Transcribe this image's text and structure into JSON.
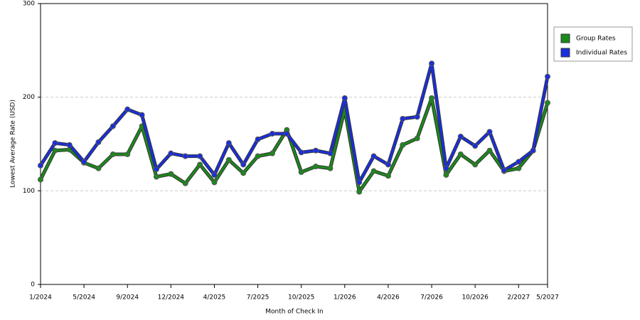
{
  "chart_data": {
    "type": "line",
    "x_label": "Month of Check In",
    "y_label": "Lowest Average Rate (USD)",
    "categories": [
      "1/2024",
      null,
      null,
      "5/2024",
      null,
      null,
      "9/2024",
      null,
      null,
      "12/2024",
      null,
      null,
      "4/2025",
      null,
      null,
      "7/2025",
      null,
      null,
      "10/2025",
      null,
      null,
      "1/2026",
      null,
      null,
      "4/2026",
      null,
      null,
      "7/2026",
      null,
      null,
      "10/2026",
      null,
      null,
      "2/2027",
      null,
      "5/2027"
    ],
    "series": [
      {
        "name": "Group Rates",
        "color": "#1a8a1a",
        "values": [
          112,
          143,
          144,
          130,
          124,
          139,
          139,
          169,
          115,
          118,
          108,
          128,
          109,
          133,
          119,
          137,
          140,
          165,
          120,
          126,
          124,
          187,
          99,
          121,
          116,
          149,
          156,
          199,
          117,
          139,
          128,
          143,
          121,
          124,
          143,
          194
        ]
      },
      {
        "name": "Individual Rates",
        "color": "#1a2ee0",
        "values": [
          127,
          151,
          149,
          131,
          152,
          169,
          187,
          181,
          123,
          140,
          137,
          137,
          117,
          151,
          128,
          155,
          161,
          161,
          141,
          143,
          140,
          199,
          109,
          137,
          128,
          177,
          179,
          236,
          124,
          158,
          148,
          163,
          122,
          131,
          143,
          222
        ]
      }
    ],
    "ylim": [
      0,
      300
    ],
    "yticks": [
      0,
      100,
      200,
      300
    ],
    "grid": true,
    "legend": "right"
  }
}
